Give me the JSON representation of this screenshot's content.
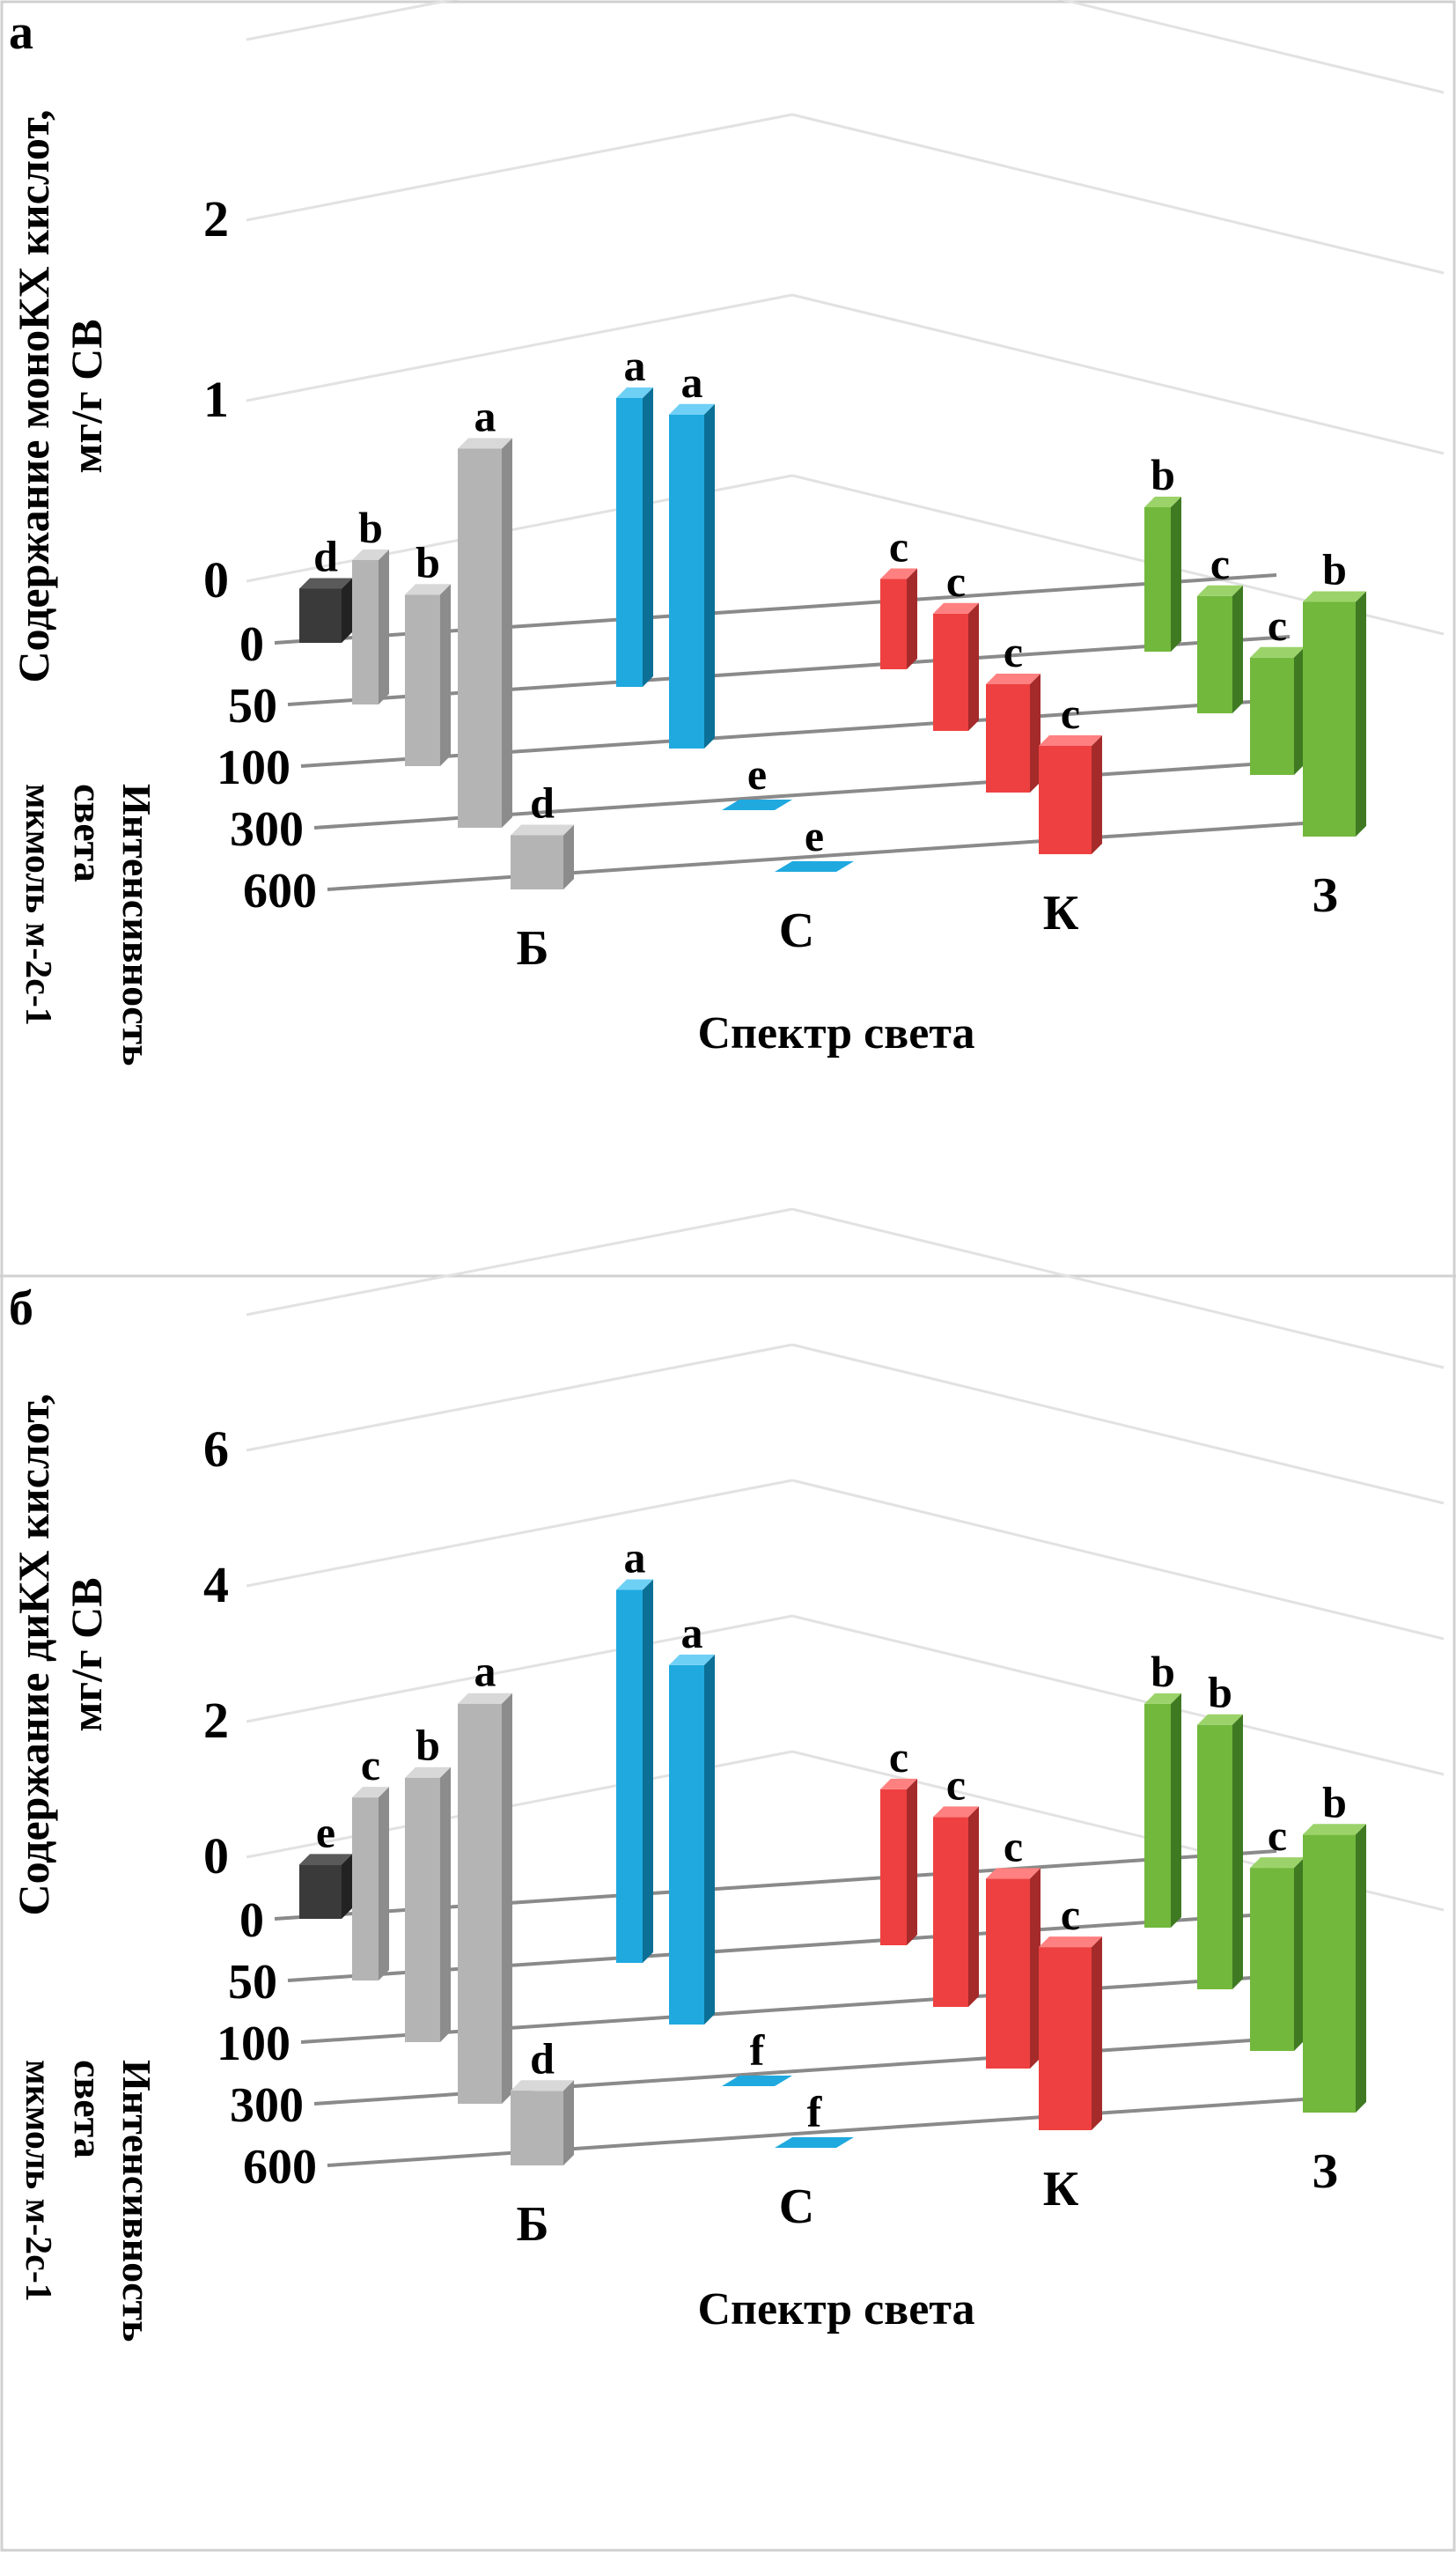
{
  "chart_data": [
    {
      "panel_label": "а",
      "type": "bar3d",
      "ylabel_line1": "Содержание моноКХ кислот,",
      "ylabel_line2": "мг/г СВ",
      "depth_label_line1": "Интенсивность",
      "depth_label_line2": "света",
      "depth_label_line3": "мкмоль м-2с-1",
      "xlabel": "Спектр света",
      "yticks": [
        "0",
        "1",
        "2"
      ],
      "ylim": [
        0,
        2.5
      ],
      "categories": [
        "Б",
        "С",
        "К",
        "З"
      ],
      "intensities": [
        "0",
        "50",
        "100",
        "300",
        "600"
      ],
      "control": {
        "intensity": "0",
        "value": 0.3,
        "letter": "d"
      },
      "series": [
        {
          "intensity": "50",
          "values": [
            0.8,
            1.6,
            0.5,
            0.8
          ],
          "letters": [
            "b",
            "a",
            "c",
            "b"
          ]
        },
        {
          "intensity": "100",
          "values": [
            0.95,
            1.85,
            0.65,
            0.65
          ],
          "letters": [
            "b",
            "a",
            "c",
            "c"
          ]
        },
        {
          "intensity": "300",
          "values": [
            2.1,
            0.02,
            0.6,
            0.65
          ],
          "letters": [
            "a",
            "e",
            "c",
            "c"
          ]
        },
        {
          "intensity": "600",
          "values": [
            0.3,
            0.02,
            0.6,
            1.3
          ],
          "letters": [
            "d",
            "e",
            "c",
            "b"
          ]
        }
      ],
      "grid": true
    },
    {
      "panel_label": "б",
      "type": "bar3d",
      "ylabel_line1": "Содержание диКХ кислот,",
      "ylabel_line2": "мг/г СВ",
      "depth_label_line1": "Интенсивность",
      "depth_label_line2": "света",
      "depth_label_line3": "мкмоль м-2с-1",
      "xlabel": "Спектр света",
      "yticks": [
        "0",
        "2",
        "4",
        "6"
      ],
      "ylim": [
        0,
        7
      ],
      "categories": [
        "Б",
        "С",
        "К",
        "З"
      ],
      "intensities": [
        "0",
        "50",
        "100",
        "300",
        "600"
      ],
      "control": {
        "intensity": "0",
        "value": 0.8,
        "letter": "e"
      },
      "series": [
        {
          "intensity": "50",
          "values": [
            2.7,
            5.5,
            2.3,
            3.3
          ],
          "letters": [
            "c",
            "a",
            "c",
            "b"
          ]
        },
        {
          "intensity": "100",
          "values": [
            3.9,
            5.3,
            2.8,
            3.9
          ],
          "letters": [
            "b",
            "a",
            "c",
            "b"
          ]
        },
        {
          "intensity": "300",
          "values": [
            5.9,
            0.05,
            2.8,
            2.7
          ],
          "letters": [
            "a",
            "f",
            "c",
            "c"
          ]
        },
        {
          "intensity": "600",
          "values": [
            1.1,
            0.05,
            2.7,
            4.1
          ],
          "letters": [
            "d",
            "f",
            "c",
            "b"
          ]
        }
      ],
      "grid": true
    }
  ],
  "colors": {
    "Б": [
      "#b4b4b4",
      "#8c8c8c",
      "#d8d8d8"
    ],
    "С": [
      "#1fa9df",
      "#0b6f96",
      "#6fd0f5"
    ],
    "К": [
      "#ee4040",
      "#a52a2a",
      "#ff8080"
    ],
    "З": [
      "#72b83c",
      "#3f7a22",
      "#9bd36a"
    ],
    "control": [
      "#3a3a3a",
      "#222222",
      "#5a5a5a"
    ]
  }
}
